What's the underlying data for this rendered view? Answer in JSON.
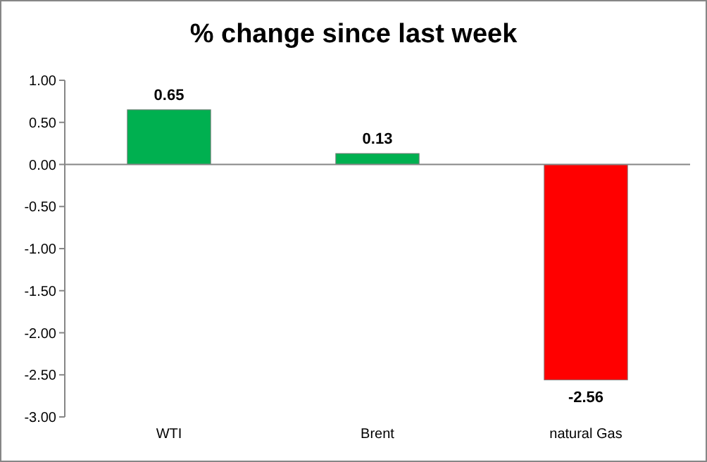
{
  "chart_data": {
    "type": "bar",
    "title": "% change since last week",
    "categories": [
      "WTI",
      "Brent",
      "natural Gas"
    ],
    "values": [
      0.65,
      0.13,
      -2.56
    ],
    "colors": [
      "#00b050",
      "#00b050",
      "#ff0000"
    ],
    "ylim": [
      -3,
      1
    ],
    "yticks": [
      {
        "value": 1,
        "label": "1.00"
      },
      {
        "value": 0.5,
        "label": "0.50"
      },
      {
        "value": 0,
        "label": "0.00"
      },
      {
        "value": -0.5,
        "label": "-0.50"
      },
      {
        "value": -1,
        "label": "-1.00"
      },
      {
        "value": -1.5,
        "label": "-1.50"
      },
      {
        "value": -2,
        "label": "-2.00"
      },
      {
        "value": -2.5,
        "label": "-2.50"
      },
      {
        "value": -3,
        "label": "-3.00"
      }
    ],
    "data_labels": true
  }
}
